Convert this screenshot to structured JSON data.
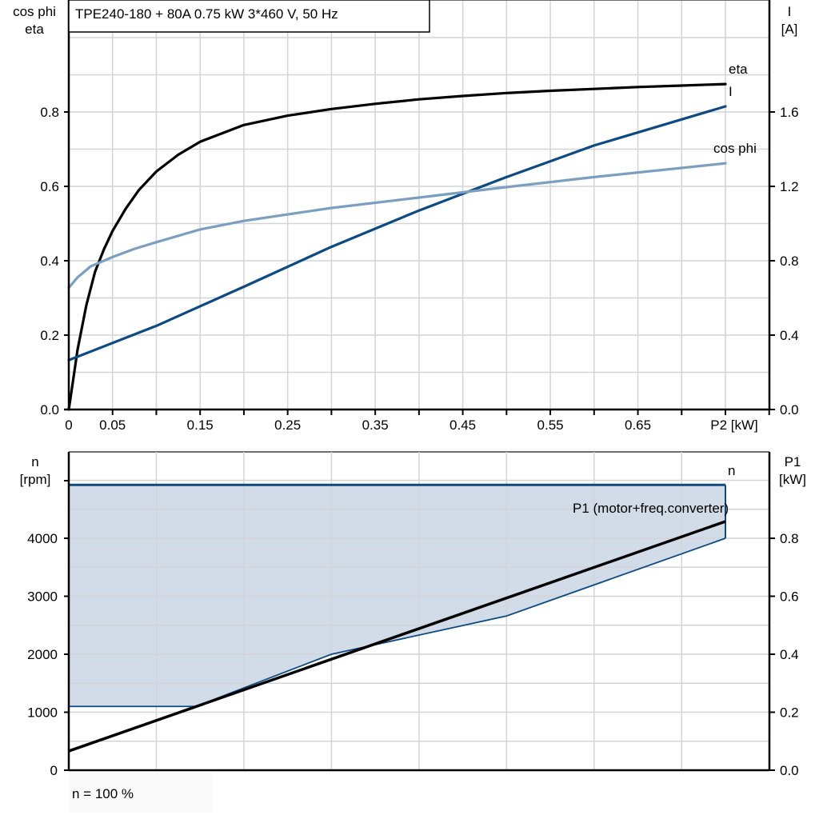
{
  "title": "TPE240-180 + 80A   0.75 kW   3*460 V, 50 Hz",
  "colors": {
    "eta": "#000000",
    "current": "#0b4a82",
    "cos_phi": "#7a9fc0",
    "speed": "#0b4a82",
    "band_fill": "#d1dce8",
    "p1": "#000000",
    "grid": "#d2d4d8"
  },
  "chart_data": [
    {
      "type": "line",
      "title": "TPE240-180 + 80A   0.75 kW   3*460 V, 50 Hz",
      "xlabel": "P2 [kW]",
      "ylabel_left": "cos phi\neta",
      "ylabel_right": "I\n[A]",
      "xlim": [
        0,
        0.8
      ],
      "ylim_left": [
        0,
        1.0
      ],
      "ylim_right": [
        0,
        2.0
      ],
      "grid": true,
      "x_ticks": [
        "0",
        "0.05",
        "0.15",
        "0.25",
        "0.35",
        "0.45",
        "0.55",
        "0.65",
        "P2 [kW]"
      ],
      "y_ticks_left": [
        "0.0",
        "0.2",
        "0.4",
        "0.6",
        "0.8"
      ],
      "y_ticks_right": [
        "0.0",
        "0.4",
        "0.8",
        "1.2",
        "1.6"
      ],
      "series": [
        {
          "name": "eta",
          "axis": "left",
          "label": "eta",
          "x": [
            0,
            0.005,
            0.01,
            0.02,
            0.03,
            0.04,
            0.05,
            0.065,
            0.08,
            0.1,
            0.125,
            0.15,
            0.2,
            0.25,
            0.3,
            0.35,
            0.4,
            0.45,
            0.5,
            0.55,
            0.6,
            0.65,
            0.7,
            0.75
          ],
          "values": [
            0,
            0.08,
            0.16,
            0.28,
            0.37,
            0.43,
            0.48,
            0.54,
            0.59,
            0.64,
            0.685,
            0.72,
            0.765,
            0.79,
            0.808,
            0.822,
            0.834,
            0.843,
            0.851,
            0.857,
            0.862,
            0.867,
            0.871,
            0.875
          ]
        },
        {
          "name": "I",
          "axis": "right",
          "label": "I",
          "x": [
            0,
            0.1,
            0.2,
            0.3,
            0.4,
            0.5,
            0.6,
            0.75
          ],
          "values": [
            0.266,
            0.45,
            0.66,
            0.875,
            1.07,
            1.25,
            1.42,
            1.63
          ]
        },
        {
          "name": "cos phi",
          "axis": "left",
          "label": "cos phi",
          "x": [
            0,
            0.01,
            0.025,
            0.05,
            0.075,
            0.1,
            0.15,
            0.2,
            0.3,
            0.4,
            0.5,
            0.6,
            0.75
          ],
          "values": [
            0.327,
            0.355,
            0.385,
            0.41,
            0.432,
            0.45,
            0.484,
            0.507,
            0.542,
            0.57,
            0.598,
            0.625,
            0.662
          ]
        }
      ]
    },
    {
      "type": "area",
      "xlim": [
        0,
        0.8
      ],
      "ylabel_left": "n\n[rpm]",
      "ylabel_right": "P1\n[kW]",
      "ylim_left": [
        0,
        5000
      ],
      "ylim_right": [
        0,
        1.0
      ],
      "grid": true,
      "y_ticks_left": [
        "0",
        "1000",
        "2000",
        "3000",
        "4000"
      ],
      "y_ticks_right": [
        "0.0",
        "0.2",
        "0.4",
        "0.6",
        "0.8"
      ],
      "annotation": "n = 100 %",
      "series": [
        {
          "name": "n (speed band)",
          "axis": "left",
          "label": "n",
          "upper": {
            "x": [
              0,
              0.75
            ],
            "values": [
              4920,
              4920
            ]
          },
          "lower": {
            "x": [
              0,
              0.145,
              0.3,
              0.43,
              0.5,
              0.75
            ],
            "values": [
              1100,
              1100,
              2000,
              2430,
              2660,
              4000
            ]
          }
        },
        {
          "name": "P1 (motor+freq.converter)",
          "axis": "right",
          "label": "P1 (motor+freq.converter)",
          "x": [
            0,
            0.75
          ],
          "values": [
            0.066,
            0.858
          ]
        }
      ]
    }
  ]
}
